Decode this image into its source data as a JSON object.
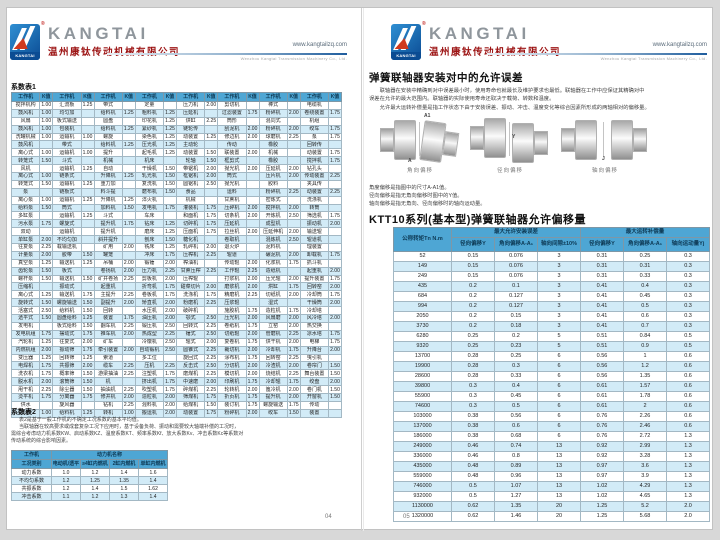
{
  "brand": {
    "name": "KANGTAI",
    "logo_caption": "KANGTAI",
    "reg_mark": "®",
    "company_cn": "温州康钛传动机械有限公司",
    "website": "www.kangtailzq.com",
    "website_sub": "Wenzhou Kangtai Transmission Machinery Co., Ltd."
  },
  "left_page": {
    "table1_title": "系数表1",
    "table1": {
      "header": [
        "工作机",
        "K值",
        "工作机",
        "K值",
        "工作机",
        "K值",
        "工作机",
        "K值",
        "工作机",
        "K值",
        "工作机",
        "K值",
        "工作机",
        "K值",
        "工作机",
        "K值"
      ],
      "rows": [
        [
          "搅拌机构",
          "1.00",
          "汇流板",
          "1.25",
          "带式",
          "",
          "定量",
          "",
          "压力机",
          "2.00",
          "剪切机",
          "",
          "棒式",
          "",
          "电缆机",
          ""
        ],
        [
          "鼓风机",
          "1.00",
          "均匀加",
          "",
          "给料机",
          "1.25",
          "粗料机",
          "1.25",
          "压延机",
          "",
          "过滤装置",
          "1.75",
          "粉碎机",
          "2.00",
          "卷绕装置",
          "1.75"
        ],
        [
          "风扇",
          "1.00",
          "板式输送",
          "",
          "圆盘",
          "",
          "印花机",
          "1.25",
          "烘缸",
          "2.25",
          "筒形",
          "",
          "混同式",
          "",
          "机组",
          ""
        ],
        [
          "鼓风机",
          "1.00",
          "包装机",
          "",
          "给料机",
          "1.25",
          "紧砂机",
          "1.25",
          "链轮传",
          "",
          "刮泥机",
          "2.00",
          "粉碎机",
          "2.00",
          "绞车",
          "1.75"
        ],
        [
          "洗罐机械",
          "1.00",
          "运输机",
          "1.00",
          "螺旋",
          "",
          "染色机",
          "1.25",
          "动装置",
          "1.25",
          "修边机",
          "2.00",
          "球磨机",
          "2.25",
          "泵",
          "1.75"
        ],
        [
          "鼓风机",
          "",
          "带式",
          "",
          "给料机",
          "1.25",
          "压光机",
          "1.25",
          "主动轮",
          "",
          "传动",
          "",
          "橡胶",
          "",
          "回转传",
          ""
        ],
        [
          "离心式",
          "1.00",
          "运输机",
          "1.00",
          "提升",
          "",
          "起毛机",
          "1.25",
          "动装置",
          "1.50",
          "联装置",
          "2.00",
          "机械",
          "",
          "动装置",
          "1.75"
        ],
        [
          "转笼式",
          "1.50",
          "斗式",
          "",
          "机械",
          "",
          "机床",
          "",
          "轮轴",
          "1.50",
          "框剪式",
          "",
          "橡胶",
          "",
          "搅拌机",
          "1.75"
        ],
        [
          "风机",
          "",
          "运输机",
          "1.25",
          "自动",
          "",
          "干燥机",
          "1.50",
          "带锯机",
          "2.00",
          "抛光机",
          "2.00",
          "压延机",
          "2.00",
          "钻孔头",
          ""
        ],
        [
          "离心式",
          "1.00",
          "链条式",
          "",
          "升降机",
          "1.25",
          "轧光机",
          "1.50",
          "框锯机",
          "2.00",
          "筒式",
          "",
          "压片机",
          "2.00",
          "传动装置",
          "2.25"
        ],
        [
          "转笼式",
          "1.50",
          "运输机",
          "1.25",
          "重力加",
          "",
          "复洗机",
          "1.50",
          "圆锯机",
          "2.50",
          "抛光机",
          "",
          "胶料",
          "",
          "夹具传",
          ""
        ],
        [
          "泵",
          "",
          "链板式",
          "",
          "料斗提",
          "",
          "磨布机",
          "1.50",
          "食品",
          "",
          "运料",
          "",
          "粉碎机",
          "2.25",
          "动装置",
          "2.25"
        ],
        [
          "离心泵",
          "1.00",
          "运输机",
          "1.25",
          "升降机",
          "1.25",
          "淬火机",
          "",
          "机械",
          "",
          "甘蔗机",
          "",
          "密炼式",
          "",
          "洗涤机",
          ""
        ],
        [
          "给料泵",
          "1.50",
          "筒式",
          "",
          "加料机",
          "1.50",
          "发电机",
          "1.75",
          "灌装机",
          "1.75",
          "压碎机",
          "2.00",
          "搅拌机",
          "2.00",
          "转筒",
          ""
        ],
        [
          "多缸泵",
          "",
          "运输机",
          "1.25",
          "斗式",
          "",
          "车床",
          "",
          "和面机",
          "1.75",
          "切条机",
          "2.00",
          "开炼机",
          "2.50",
          "筛选机",
          "1.75"
        ],
        [
          "污水泵",
          "1.75",
          "螺旋式",
          "",
          "提升机",
          "1.75",
          "钻床",
          "1.25",
          "切碎机",
          "1.75",
          "压延机",
          "",
          "成型机",
          "",
          "振动机",
          "2.00"
        ],
        [
          "双动",
          "",
          "运输机",
          "",
          "提升机",
          "",
          "磨床",
          "1.25",
          "压面机",
          "1.75",
          "拉丝机",
          "2.00",
          "压延伸机",
          "2.00",
          "输送辊",
          ""
        ],
        [
          "单缸泵",
          "2.00",
          "不均匀加",
          "",
          "斜井提升",
          "",
          "刨床",
          "1.50",
          "糖化机",
          "",
          "卷取机",
          "",
          "混炼机",
          "2.50",
          "辊道机",
          ""
        ],
        [
          "往复泵",
          "2.25",
          "载输送机",
          "",
          "矿用",
          "2.00",
          "铣床",
          "1.25",
          "轧碎机",
          "2.00",
          "退火炉",
          "",
          "泥料机",
          "",
          "理装置",
          ""
        ],
        [
          "计量泵",
          "2.00",
          "胶带",
          "1.50",
          "罐笼",
          "",
          "冲床",
          "1.75",
          "压榨机",
          "2.25",
          "辊道",
          "",
          "碾泥机",
          "2.00",
          "卸载机",
          "1.75"
        ],
        [
          "真空泵",
          "1.25",
          "输送机",
          "1.25",
          "吊桶",
          "2.00",
          "锻锤",
          "2.00",
          "榨油机",
          "",
          "传动辊",
          "2.00",
          "化浆机",
          "1.75",
          "抓斗机",
          ""
        ],
        [
          "齿轮泵",
          "1.50",
          "板式",
          "",
          "卷扬机",
          "2.00",
          "压力机",
          "2.25",
          "甘蔗压榨",
          "2.25",
          "工作辊",
          "2.25",
          "造纸机",
          "",
          "起重机",
          "2.00"
        ],
        [
          "螺杆泵",
          "1.50",
          "输送机",
          "1.50",
          "矿井卷扬",
          "2.25",
          "剪板机",
          "2.00",
          "压榨辊",
          "",
          "打浆机",
          "2.00",
          "压光辊",
          "2.00",
          "提升装置",
          "1.75"
        ],
        [
          "压缩机",
          "",
          "振动式",
          "",
          "起重机",
          "",
          "折弯机",
          "1.75",
          "甜菜切片",
          "2.00",
          "磨浆机",
          "2.00",
          "烘缸",
          "1.75",
          "回转窑",
          "2.00"
        ],
        [
          "离心式",
          "1.25",
          "输送机",
          "1.75",
          "主提升",
          "2.25",
          "卷板机",
          "1.75",
          "洗涤机",
          "1.75",
          "精磨机",
          "2.25",
          "切纸机",
          "2.00",
          "冷却筒",
          "1.75"
        ],
        [
          "旋转式",
          "1.50",
          "螺旋输送",
          "1.50",
          "副提升",
          "2.00",
          "矫直机",
          "2.00",
          "粉磨机",
          "2.25",
          "压浆辊",
          "",
          "湿式",
          "",
          "干燥筒",
          "2.00"
        ],
        [
          "活塞式",
          "2.50",
          "给料机",
          "1.50",
          "回转",
          "",
          "水压机",
          "2.00",
          "破碎机",
          "",
          "施胶机",
          "1.75",
          "造粒机",
          "1.75",
          "冷却塔",
          ""
        ],
        [
          "透平式",
          "1.50",
          "圆盘给料",
          "1.25",
          "装置",
          "1.75",
          "油压机",
          "2.00",
          "颚式",
          "2.50",
          "压光机",
          "2.00",
          "风扇磨",
          "2.00",
          "风冷塔",
          "2.00"
        ],
        [
          "发电机",
          "",
          "板式给料",
          "1.50",
          "翻车机",
          "2.25",
          "锻压机",
          "2.50",
          "回转式",
          "2.25",
          "卷纸机",
          "1.75",
          "立窑",
          "2.00",
          "热交换",
          ""
        ],
        [
          "发电机组",
          "1.75",
          "摆动式",
          "1.75",
          "推车机",
          "2.00",
          "热成型",
          "2.25",
          "锤式",
          "2.50",
          "切纸辊",
          "2.00",
          "管磨机",
          "2.25",
          "凉水塔",
          "1.75"
        ],
        [
          "汽轮机",
          "1.25",
          "往复式",
          "2.00",
          "矿车",
          "",
          "冷镦机",
          "2.50",
          "辊式",
          "2.00",
          "复卷机",
          "1.75",
          "烘干机",
          "2.00",
          "电梯",
          "1.75"
        ],
        [
          "内燃机组",
          "2.00",
          "振动筛",
          "1.75",
          "牵引装置",
          "2.00",
          "自动锻机",
          "2.50",
          "圆锥式",
          "2.25",
          "裁切机",
          "2.00",
          "冷却机",
          "1.75",
          "升降台",
          "2.00"
        ],
        [
          "变压器",
          "1.25",
          "回转筛",
          "1.25",
          "索道",
          "",
          "多工位",
          "",
          "旋回式",
          "2.25",
          "涂布机",
          "1.75",
          "回转窑",
          "2.25",
          "曳引机",
          ""
        ],
        [
          "电焊机",
          "1.75",
          "共振筛",
          "2.00",
          "缆车",
          "2.25",
          "压机",
          "2.25",
          "反击式",
          "2.50",
          "分切机",
          "2.00",
          "冷渣机",
          "2.00",
          "卷帘门",
          "1.50"
        ],
        [
          "洗衣机",
          "1.75",
          "概率筛",
          "1.50",
          "游梁抽油",
          "2.25",
          "注塑机",
          "1.75",
          "磨煤机",
          "2.25",
          "模切机",
          "2.00",
          "烧结机",
          "2.25",
          "舞台装置",
          "1.50"
        ],
        [
          "脱水机",
          "2.00",
          "滚筒筛",
          "1.50",
          "机",
          "",
          "挤出机",
          "1.75",
          "中速磨",
          "2.00",
          "印刷机",
          "1.75",
          "冷却辊",
          "1.75",
          "绞盘",
          "2.00"
        ],
        [
          "甩干机",
          "2.25",
          "除尘器",
          "1.50",
          "抽油机",
          "2.25",
          "吹塑机",
          "1.75",
          "碎煤机",
          "2.25",
          "轮转机",
          "2.00",
          "篦冷机",
          "2.00",
          "卷门机",
          "1.50"
        ],
        [
          "烫平机",
          "1.75",
          "分离器",
          "1.75",
          "修井机",
          "2.00",
          "造粒机",
          "2.00",
          "筛煤机",
          "1.75",
          "折页机",
          "1.75",
          "提升机",
          "2.00",
          "开窗机",
          "1.50"
        ],
        [
          "供水",
          "",
          "旋风器",
          "",
          "钻机",
          "2.25",
          "混料机",
          "2.00",
          "给煤机",
          "1.50",
          "装订机",
          "1.75",
          "螺旋输送",
          "1.75",
          "传动",
          ""
        ],
        [
          "机械",
          "1.00",
          "给料机",
          "1.25",
          "转机",
          "1.00",
          "搬运机",
          "2.00",
          "动装置",
          "1.75",
          "粉碎机",
          "2.00",
          "绞车",
          "1.50",
          "装置",
          ""
        ]
      ]
    },
    "table2_title": "系数表2",
    "notes": [
      "表2是基于一般工作机的不确定工况系数的基本平均值。",
      "当联轴器在较高要求或成套复杂工况下应用时，基于设备负荷、振动和需要较大轴端补偿的工况时，",
      "需综合考虑动力机系数KW、启动系数KZ、温度系数KT、频率系数Kf、放大系数Kv、冲击系数Kc等系数对",
      "传动系统的综合影响因素。"
    ],
    "table2": {
      "corner": "工作机",
      "group": "动力机名称",
      "sub_headers": [
        "工况类别",
        "电动机/透平",
        "≥4缸内燃机",
        "2缸内燃机",
        "单缸内燃机"
      ],
      "rows": [
        [
          "动力系数",
          "1.0",
          "1.2",
          "1.4",
          "1.6"
        ],
        [
          "不均匀系数",
          "1.2",
          "1.25",
          "1.35",
          "1.4"
        ],
        [
          "共振系数",
          "1.2",
          "1.4",
          "1.5",
          "1.62"
        ],
        [
          "冲击系数",
          "1.1",
          "1.2",
          "1.3",
          "1.4"
        ]
      ]
    },
    "page_number": "04"
  },
  "right_page": {
    "section_title": "弹簧联轴器安装对中的允许误差",
    "paragraphs": [
      "　　联轴器在安装中精确到对中误差最小时，使用寿命也就最长及维护要求也最低。联轴器在工作中应保证其精确对中",
      "误差在允许的最大范围内。联轴器的实际使用寿命还取决于载荷、转数和温度。",
      "　　允许最大运转补偿量是指工作状态下由于安装误差、振动、冲击、温度变化等综合因素所形成的两轴相对的偏移量。"
    ],
    "figures": [
      {
        "caption": "角向偏移",
        "label_top": "A1",
        "label_bottom": "A"
      },
      {
        "caption": "径向偏移",
        "label": "Y"
      },
      {
        "caption": "轴向偏移",
        "label": "J"
      }
    ],
    "figure_notes": [
      "角度偏移是指图中的尺寸A-A1值。",
      "径向偏移是指无角向偏移时图中的Y值。",
      "轴向偏移是指无角向、径向偏移时的轴向运动量。"
    ],
    "table_title": "KTT10系列(基本型)弹簧联轴器允许偏移量",
    "offset_table": {
      "col0": "公称转矩Tn N.m",
      "groups": [
        "最大允许安装误差",
        "最大运转补偿量"
      ],
      "sub_headers": [
        "径向偏移Y",
        "角向偏移A-A₁",
        "轴向间隙±10%",
        "径向偏移Y",
        "角向偏移A-A₁",
        "轴向运动量Yj"
      ],
      "rows": [
        [
          "52",
          "0.15",
          "0.076",
          "3",
          "0.31",
          "0.25",
          "0.3"
        ],
        [
          "149",
          "0.15",
          "0.076",
          "3",
          "0.31",
          "0.31",
          "0.3"
        ],
        [
          "249",
          "0.15",
          "0.076",
          "3",
          "0.31",
          "0.33",
          "0.3"
        ],
        [
          "435",
          "0.2",
          "0.1",
          "3",
          "0.41",
          "0.4",
          "0.3"
        ],
        [
          "684",
          "0.2",
          "0.127",
          "3",
          "0.41",
          "0.45",
          "0.3"
        ],
        [
          "994",
          "0.2",
          "0.127",
          "3",
          "0.41",
          "0.5",
          "0.3"
        ],
        [
          "2050",
          "0.2",
          "0.15",
          "3",
          "0.41",
          "0.6",
          "0.3"
        ],
        [
          "3730",
          "0.2",
          "0.18",
          "3",
          "0.41",
          "0.7",
          "0.3"
        ],
        [
          "6280",
          "0.25",
          "0.2",
          "5",
          "0.51",
          "0.84",
          "0.5"
        ],
        [
          "9320",
          "0.25",
          "0.23",
          "5",
          "0.51",
          "0.9",
          "0.5"
        ],
        [
          "13700",
          "0.28",
          "0.25",
          "6",
          "0.56",
          "1",
          "0.6"
        ],
        [
          "19900",
          "0.28",
          "0.3",
          "6",
          "0.56",
          "1.2",
          "0.6"
        ],
        [
          "28600",
          "0.28",
          "0.33",
          "6",
          "0.56",
          "1.35",
          "0.6"
        ],
        [
          "39800",
          "0.3",
          "0.4",
          "6",
          "0.61",
          "1.57",
          "0.6"
        ],
        [
          "55900",
          "0.3",
          "0.45",
          "6",
          "0.61",
          "1.78",
          "0.6"
        ],
        [
          "74600",
          "0.3",
          "0.5",
          "6",
          "0.61",
          "2",
          "0.6"
        ],
        [
          "103000",
          "0.38",
          "0.56",
          "6",
          "0.76",
          "2.26",
          "0.6"
        ],
        [
          "137000",
          "0.38",
          "0.6",
          "6",
          "0.76",
          "2.46",
          "0.6"
        ],
        [
          "186000",
          "0.38",
          "0.68",
          "6",
          "0.76",
          "2.72",
          "1.3"
        ],
        [
          "249000",
          "0.46",
          "0.74",
          "13",
          "0.92",
          "2.99",
          "1.3"
        ],
        [
          "336000",
          "0.46",
          "0.8",
          "13",
          "0.92",
          "3.28",
          "1.3"
        ],
        [
          "435000",
          "0.48",
          "0.89",
          "13",
          "0.97",
          "3.6",
          "1.3"
        ],
        [
          "559000",
          "0.48",
          "0.96",
          "13",
          "0.97",
          "3.9",
          "1.3"
        ],
        [
          "746000",
          "0.5",
          "1.07",
          "13",
          "1.02",
          "4.29",
          "1.3"
        ],
        [
          "932000",
          "0.5",
          "1.27",
          "13",
          "1.02",
          "4.65",
          "1.3"
        ],
        [
          "1130000",
          "0.62",
          "1.35",
          "20",
          "1.25",
          "5.2",
          "2.0"
        ],
        [
          "1320000",
          "0.62",
          "1.46",
          "20",
          "1.25",
          "5.68",
          "2.0"
        ]
      ]
    },
    "page_number": "05"
  },
  "colors": {
    "table_header_bg": "#4ea6d4",
    "row_alt_bg": "#d2ebf7",
    "brand_red": "#9c1313",
    "brand_gray": "#8f969c",
    "logo_blue": "#0b4c93",
    "rule_blue": "#1f5d9e"
  }
}
